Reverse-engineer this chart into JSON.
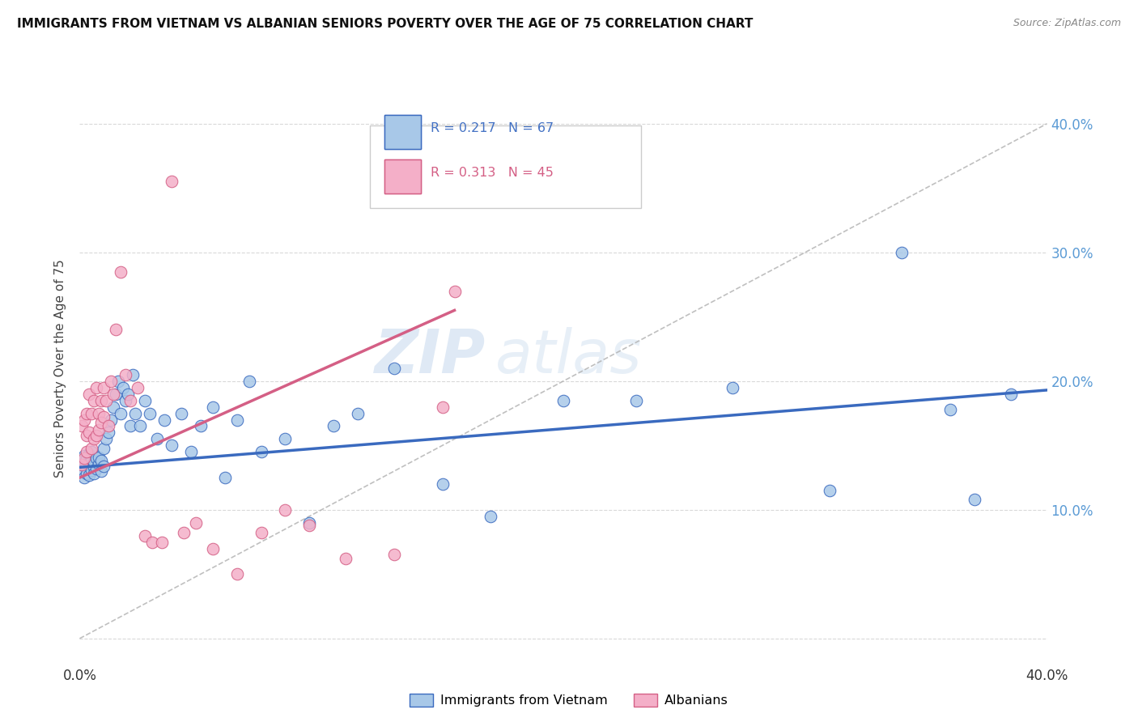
{
  "title": "IMMIGRANTS FROM VIETNAM VS ALBANIAN SENIORS POVERTY OVER THE AGE OF 75 CORRELATION CHART",
  "source": "Source: ZipAtlas.com",
  "ylabel": "Seniors Poverty Over the Age of 75",
  "xlim": [
    0.0,
    0.4
  ],
  "ylim": [
    -0.02,
    0.44
  ],
  "color_vietnam": "#a8c8e8",
  "color_albanian": "#f4afc8",
  "color_vietnam_line": "#3a6abf",
  "color_albanian_line": "#d45f85",
  "color_diagonal": "#b0b0b0",
  "watermark_zip": "ZIP",
  "watermark_atlas": "atlas",
  "vietnam_x": [
    0.001,
    0.001,
    0.002,
    0.002,
    0.002,
    0.003,
    0.003,
    0.003,
    0.004,
    0.004,
    0.004,
    0.005,
    0.005,
    0.005,
    0.006,
    0.006,
    0.006,
    0.007,
    0.007,
    0.008,
    0.008,
    0.009,
    0.009,
    0.01,
    0.01,
    0.011,
    0.012,
    0.013,
    0.014,
    0.015,
    0.016,
    0.017,
    0.018,
    0.019,
    0.02,
    0.021,
    0.022,
    0.023,
    0.025,
    0.027,
    0.029,
    0.032,
    0.035,
    0.038,
    0.042,
    0.046,
    0.05,
    0.055,
    0.06,
    0.065,
    0.07,
    0.075,
    0.085,
    0.095,
    0.105,
    0.115,
    0.13,
    0.15,
    0.17,
    0.2,
    0.23,
    0.27,
    0.31,
    0.34,
    0.36,
    0.37,
    0.385
  ],
  "vietnam_y": [
    0.135,
    0.13,
    0.138,
    0.142,
    0.125,
    0.133,
    0.14,
    0.128,
    0.136,
    0.143,
    0.127,
    0.131,
    0.139,
    0.145,
    0.133,
    0.128,
    0.137,
    0.132,
    0.14,
    0.136,
    0.141,
    0.13,
    0.138,
    0.148,
    0.134,
    0.155,
    0.16,
    0.17,
    0.18,
    0.19,
    0.2,
    0.175,
    0.195,
    0.185,
    0.19,
    0.165,
    0.205,
    0.175,
    0.165,
    0.185,
    0.175,
    0.155,
    0.17,
    0.15,
    0.175,
    0.145,
    0.165,
    0.18,
    0.125,
    0.17,
    0.2,
    0.145,
    0.155,
    0.09,
    0.165,
    0.175,
    0.21,
    0.12,
    0.095,
    0.185,
    0.185,
    0.195,
    0.115,
    0.3,
    0.178,
    0.108,
    0.19
  ],
  "albanian_x": [
    0.001,
    0.001,
    0.002,
    0.002,
    0.003,
    0.003,
    0.003,
    0.004,
    0.004,
    0.005,
    0.005,
    0.006,
    0.006,
    0.007,
    0.007,
    0.008,
    0.008,
    0.009,
    0.009,
    0.01,
    0.01,
    0.011,
    0.012,
    0.013,
    0.014,
    0.015,
    0.017,
    0.019,
    0.021,
    0.024,
    0.027,
    0.03,
    0.034,
    0.038,
    0.043,
    0.048,
    0.055,
    0.065,
    0.075,
    0.085,
    0.095,
    0.11,
    0.13,
    0.15,
    0.155
  ],
  "albanian_y": [
    0.135,
    0.165,
    0.14,
    0.17,
    0.145,
    0.175,
    0.158,
    0.16,
    0.19,
    0.148,
    0.175,
    0.155,
    0.185,
    0.158,
    0.195,
    0.162,
    0.175,
    0.168,
    0.185,
    0.172,
    0.195,
    0.185,
    0.165,
    0.2,
    0.19,
    0.24,
    0.285,
    0.205,
    0.185,
    0.195,
    0.08,
    0.075,
    0.075,
    0.355,
    0.082,
    0.09,
    0.07,
    0.05,
    0.082,
    0.1,
    0.088,
    0.062,
    0.065,
    0.18,
    0.27
  ],
  "viet_line_x0": 0.0,
  "viet_line_y0": 0.133,
  "viet_line_x1": 0.4,
  "viet_line_y1": 0.193,
  "alb_line_x0": 0.0,
  "alb_line_y0": 0.125,
  "alb_line_x1": 0.155,
  "alb_line_y1": 0.255
}
